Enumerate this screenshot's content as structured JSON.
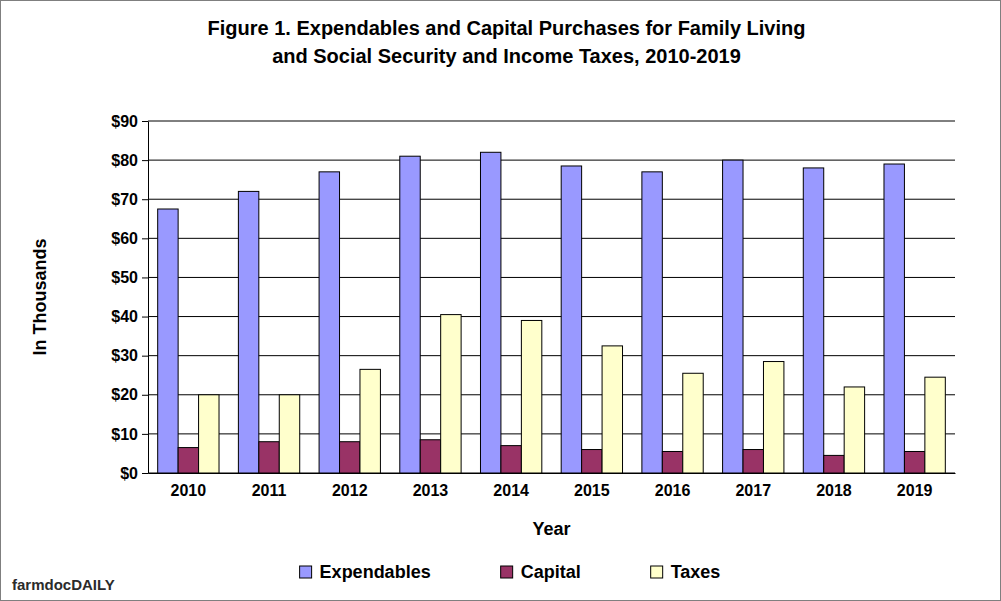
{
  "chart_data": {
    "type": "bar",
    "title": "Figure 1. Expendables and Capital Purchases for Family Living\nand Social Security and Income Taxes, 2010-2019",
    "xlabel": "Year",
    "ylabel": "In Thousands",
    "annotations": [
      "farmdocDAILY"
    ],
    "categories": [
      "2010",
      "2011",
      "2012",
      "2013",
      "2014",
      "2015",
      "2016",
      "2017",
      "2018",
      "2019"
    ],
    "series": [
      {
        "name": "Expendables",
        "color": "#9999ff",
        "values": [
          67.5,
          72,
          77,
          81,
          82,
          78.5,
          77,
          80,
          78,
          79
        ]
      },
      {
        "name": "Capital",
        "color": "#993366",
        "values": [
          6.5,
          8,
          8,
          8.5,
          7,
          6,
          5.5,
          6,
          4.5,
          5.5
        ]
      },
      {
        "name": "Taxes",
        "color": "#ffffcc",
        "values": [
          20,
          20,
          26.5,
          40.5,
          39,
          32.5,
          25.5,
          28.5,
          22,
          24.5
        ]
      }
    ],
    "ylim": [
      0,
      90
    ],
    "yticks": [
      {
        "value": 0,
        "label": "$0"
      },
      {
        "value": 10,
        "label": "$10"
      },
      {
        "value": 20,
        "label": "$20"
      },
      {
        "value": 30,
        "label": "$30"
      },
      {
        "value": 40,
        "label": "$40"
      },
      {
        "value": 50,
        "label": "$50"
      },
      {
        "value": 60,
        "label": "$60"
      },
      {
        "value": 70,
        "label": "$70"
      },
      {
        "value": 80,
        "label": "$80"
      },
      {
        "value": 90,
        "label": "$90"
      }
    ],
    "grid": true,
    "legend": "bottom"
  }
}
